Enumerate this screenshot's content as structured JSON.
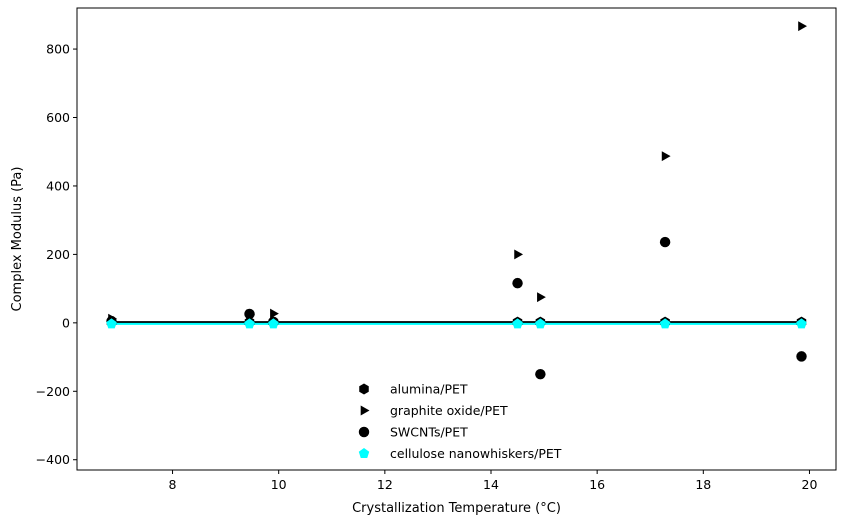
{
  "chart_data": {
    "type": "scatter",
    "title": "",
    "xlabel": "Crystallization Temperature (°C)",
    "ylabel": "Complex Modulus (Pa)",
    "xlim": [
      6.2,
      20.5
    ],
    "ylim": [
      -430,
      920
    ],
    "xticks": [
      8,
      10,
      12,
      14,
      16,
      18,
      20
    ],
    "yticks": [
      -400,
      -200,
      0,
      200,
      400,
      600,
      800
    ],
    "legend_position": "lower-center",
    "series": [
      {
        "name": "alumina/PET",
        "marker": "hexagon",
        "color": "#000000",
        "x": [
          6.85,
          9.45,
          9.9,
          14.5,
          14.93,
          17.28,
          19.85
        ],
        "y": [
          2,
          2,
          2,
          2,
          2,
          2,
          2
        ]
      },
      {
        "name": "graphite oxide/PET",
        "marker": "triangle-right",
        "color": "#000000",
        "x": [
          6.85,
          9.45,
          9.9,
          14.5,
          14.93,
          17.28,
          19.85
        ],
        "y": [
          12,
          25,
          27,
          200,
          75,
          487,
          867
        ]
      },
      {
        "name": "SWCNTs/PET",
        "marker": "circle",
        "color": "#000000",
        "x": [
          6.85,
          9.45,
          9.9,
          14.5,
          14.93,
          17.28,
          19.85
        ],
        "y": [
          5,
          26,
          3,
          116,
          -150,
          236,
          -98
        ]
      },
      {
        "name": "cellulose nanowhiskers/PET",
        "marker": "pentagon",
        "color": "#00ffff",
        "x": [
          6.85,
          9.45,
          9.9,
          14.5,
          14.93,
          17.28,
          19.85
        ],
        "y": [
          -3,
          -3,
          -3,
          -3,
          -3,
          -3,
          -3
        ]
      }
    ],
    "lines": [
      {
        "color": "#000000",
        "x": [
          6.85,
          19.85
        ],
        "y": [
          2,
          2
        ]
      },
      {
        "color": "#00ffff",
        "x": [
          6.85,
          19.85
        ],
        "y": [
          -3,
          -3
        ]
      }
    ]
  }
}
